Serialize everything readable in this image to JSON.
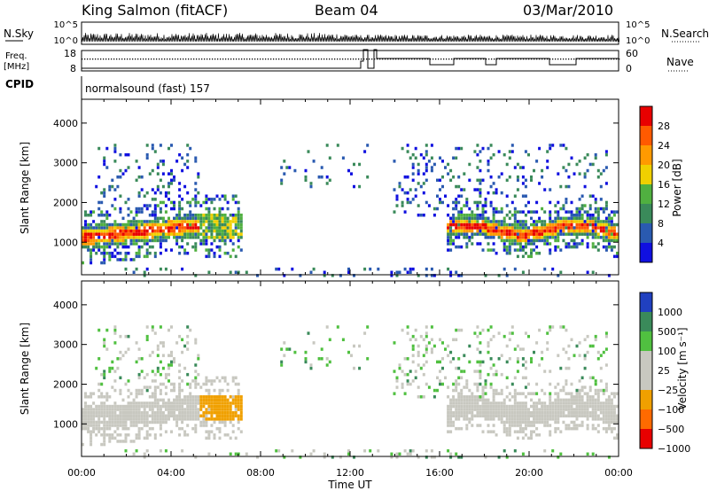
{
  "header": {
    "station": "King Salmon (fitACF)",
    "beam": "Beam 04",
    "date": "03/Mar/2010"
  },
  "top_panels": {
    "nsky_label": "N.Sky",
    "nsky_ticks": [
      "10^5",
      "10^0"
    ],
    "nsearch_label": "N.Search",
    "nsearch_ticks": [
      "10^5",
      "10^0"
    ],
    "freq_label_1": "Freq.",
    "freq_label_2": "[MHz]",
    "freq_ticks": [
      "18",
      "8"
    ],
    "nave_label": "Nave",
    "nave_ticks": [
      "60",
      "0"
    ],
    "cpid_label": "CPID",
    "cpid_text": "normalsound (fast) 157"
  },
  "axes": {
    "ylabel": "Slant Range [km]",
    "yticks": [
      "4000",
      "3000",
      "2000",
      "1000"
    ],
    "xticks": [
      "00:00",
      "04:00",
      "08:00",
      "12:00",
      "16:00",
      "20:00",
      "00:00"
    ],
    "xlabel": "Time UT"
  },
  "power_scale": {
    "label": "Power [dB]",
    "ticks": [
      "28",
      "24",
      "20",
      "16",
      "12",
      "8",
      "4"
    ],
    "colors": [
      "#e80000",
      "#ff5a00",
      "#ff9a00",
      "#f0d000",
      "#50b040",
      "#3a8a5a",
      "#2a5ab0",
      "#1010e0"
    ]
  },
  "velocity_scale": {
    "label": "Velocity [m s⁻¹]",
    "ticks": [
      "1000",
      "500",
      "100",
      "25",
      "−25",
      "−100",
      "−500",
      "−1000"
    ],
    "colors": [
      "#2040c0",
      "#3a8a5a",
      "#50c040",
      "#c8c8c0",
      "#c8c8c0",
      "#f0a000",
      "#ff6a00",
      "#e80000"
    ]
  },
  "chart_data": {
    "type": "heatmap",
    "x": [
      "00:00",
      "04:00",
      "08:00",
      "12:00",
      "16:00",
      "20:00",
      "00:00"
    ],
    "ylim": [
      180,
      4600
    ],
    "xlabel": "Time UT",
    "ylabel": "Slant Range [km]",
    "power_colorbar": {
      "label": "Power [dB]",
      "ticks": [
        28,
        24,
        20,
        16,
        12,
        8,
        4
      ]
    },
    "velocity_colorbar": {
      "label": "Velocity [m s-1]",
      "ticks": [
        1000,
        500,
        100,
        25,
        -25,
        -100,
        -500,
        -1000
      ]
    },
    "freq_mhz": {
      "ticks": [
        18,
        8
      ]
    },
    "nave": {
      "ticks": [
        60,
        0
      ]
    }
  }
}
